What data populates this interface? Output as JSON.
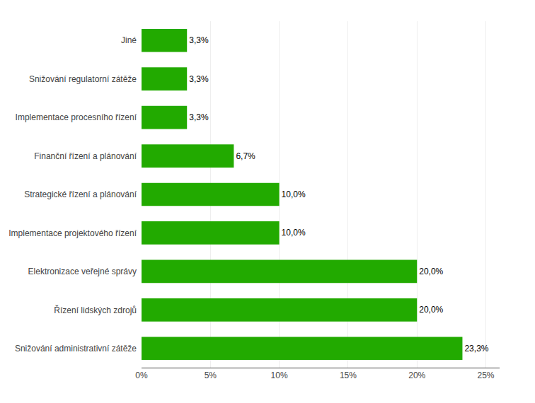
{
  "chart_data": {
    "type": "bar",
    "orientation": "horizontal",
    "categories": [
      "Snižování administrativní zátěže",
      "Řízení lidských zdrojů",
      "Elektronizace veřejné správy",
      "Implementace projektového řízení",
      "Strategické řízení a plánování",
      "Finanční řízení a plánování",
      "Implementace procesního řízení",
      "Snižování regulatorní zátěže",
      "Jiné"
    ],
    "values": [
      23.3,
      20.0,
      20.0,
      10.0,
      10.0,
      6.7,
      3.3,
      3.3,
      3.3
    ],
    "value_labels": [
      "23,3%",
      "20,0%",
      "20,0%",
      "10,0%",
      "10,0%",
      "6,7%",
      "3,3%",
      "3,3%",
      "3,3%"
    ],
    "data_labels": true,
    "color": "#22aa00",
    "xlim": [
      0,
      26
    ],
    "xticks": [
      {
        "value": 0,
        "label": "0%"
      },
      {
        "value": 5,
        "label": "5%"
      },
      {
        "value": 10,
        "label": "10%"
      },
      {
        "value": 15,
        "label": "15%"
      },
      {
        "value": 20,
        "label": "20%"
      },
      {
        "value": 25,
        "label": "25%"
      }
    ],
    "grid": true
  }
}
